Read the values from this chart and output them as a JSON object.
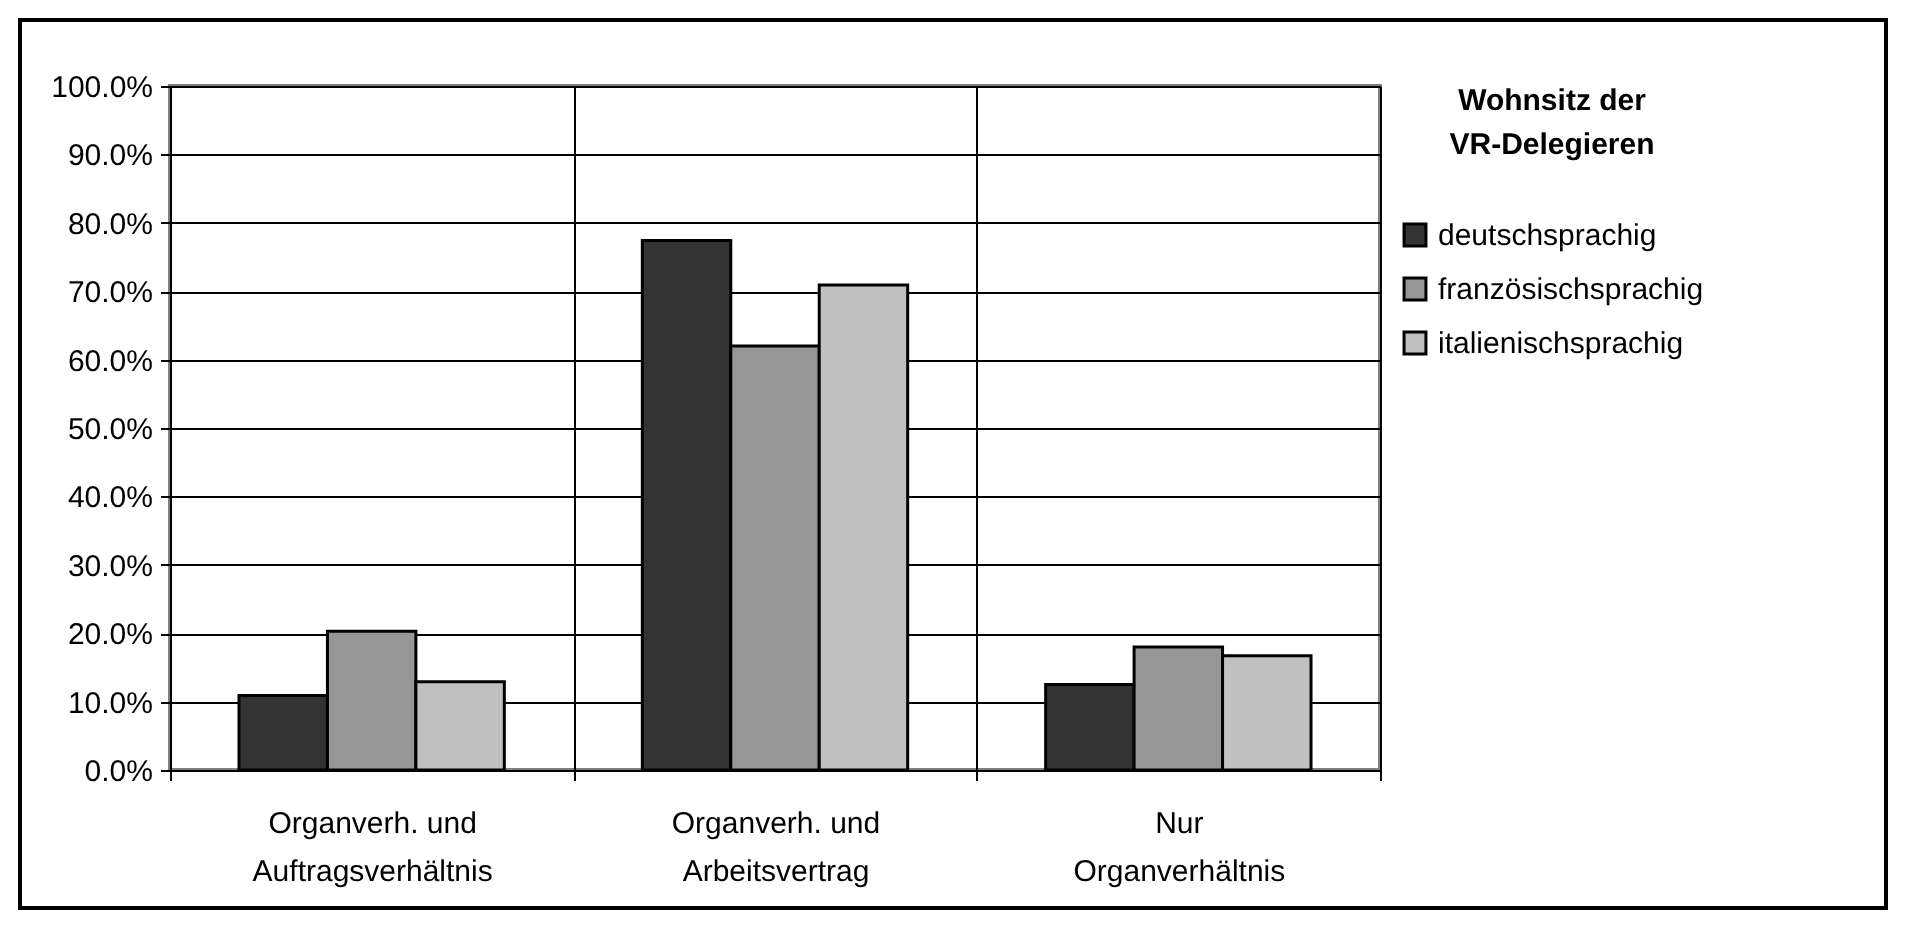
{
  "chart_data": {
    "type": "bar",
    "categories": [
      "Organverh. und Auftragsverhältnis",
      "Organverh. und Arbeitsvertrag",
      "Nur Organverhältnis"
    ],
    "series": [
      {
        "name": "deutschsprachig",
        "color": "#333333",
        "values": [
          10.9,
          77.4,
          12.5
        ]
      },
      {
        "name": "französischsprachig",
        "color": "#969696",
        "values": [
          20.3,
          62.0,
          18.0
        ]
      },
      {
        "name": "italienischsprachig",
        "color": "#c0c0c0",
        "values": [
          12.9,
          70.9,
          16.7
        ]
      }
    ],
    "legend_title": "Wohnsitz der VR-Delegieren",
    "ylim": [
      0,
      100
    ],
    "yticks": [
      {
        "value": 0,
        "label": "0.0%"
      },
      {
        "value": 10,
        "label": "10.0%"
      },
      {
        "value": 20,
        "label": "20.0%"
      },
      {
        "value": 30,
        "label": "30.0%"
      },
      {
        "value": 40,
        "label": "40.0%"
      },
      {
        "value": 50,
        "label": "50.0%"
      },
      {
        "value": 60,
        "label": "60.0%"
      },
      {
        "value": 70,
        "label": "70.0%"
      },
      {
        "value": 80,
        "label": "80.0%"
      },
      {
        "value": 90,
        "label": "90.0%"
      },
      {
        "value": 100,
        "label": "100.0%"
      }
    ],
    "grid": true,
    "legend": "right"
  }
}
